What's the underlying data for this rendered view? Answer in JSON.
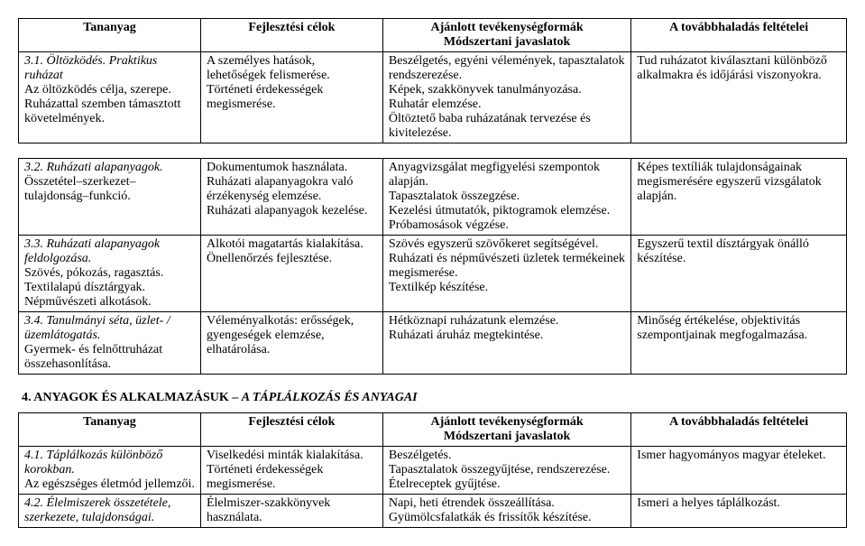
{
  "tables": {
    "first": {
      "headers": {
        "c1": "Tananyag",
        "c2": "Fejlesztési célok",
        "c3a": "Ajánlott tevékenységformák",
        "c3b": "Módszertani javaslatok",
        "c4": "A továbbhaladás feltételei"
      },
      "row1": {
        "c1_title": "3.1. Öltözködés. Praktikus ruházat",
        "c1_a": "Az öltözködés célja, szerepe.",
        "c1_b": "Ruházattal szemben támasztott követelmények.",
        "c2_a": "A személyes hatások, lehetőségek felismerése.",
        "c2_b": "Történeti érdekességek megismerése.",
        "c3_a": "Beszélgetés, egyéni vélemények, tapasztalatok rendszerezése.",
        "c3_b": "Képek, szakkönyvek tanulmányozása.",
        "c3_c": "Ruhatár elemzése.",
        "c3_d": "Öltöztető baba ruházatának tervezése és kivitelezése.",
        "c4_a": "Tud ruházatot kiválasztani különböző alkalmakra és időjárási viszonyokra."
      }
    },
    "second": {
      "row1": {
        "c1_title": "3.2. Ruházati alapanyagok.",
        "c1_a": "Összetétel–szerkezet–tulajdonság–funkció.",
        "c2_a": "Dokumentumok használata.",
        "c2_b": "Ruházati alapanyagokra való érzékenység elemzése.",
        "c2_c": "Ruházati alapanyagok kezelése.",
        "c3_a": "Anyagvizsgálat megfigyelési szempontok alapján.",
        "c3_b": "Tapasztalatok összegzése.",
        "c3_c": "Kezelési útmutatók, piktogramok elemzése.",
        "c3_d": "Próbamosások végzése.",
        "c4_a": "Képes textíliák tulajdonságainak megismerésére egyszerű vizsgálatok alapján."
      },
      "row2": {
        "c1_title": "3.3. Ruházati alapanyagok feldolgozása.",
        "c1_a": "Szövés, pókozás, ragasztás.",
        "c1_b": "Textilalapú dísztárgyak.",
        "c1_c": "Népművészeti alkotások.",
        "c2_a": "Alkotói magatartás kialakítása.",
        "c2_b": "Önellenőrzés fejlesztése.",
        "c3_a": "Szövés egyszerű szövőkeret segítségével.",
        "c3_b": "Ruházati és népművészeti üzletek termékeinek megismerése.",
        "c3_c": "Textilkép készítése.",
        "c4_a": "Egyszerű textil dísztárgyak önálló készítése."
      },
      "row3": {
        "c1_title": "3.4. Tanulmányi séta, üzlet- /üzemlátogatás.",
        "c1_a": "Gyermek- és felnőttruházat összehasonlítása.",
        "c2_a": "Véleményalkotás: erősségek, gyengeségek elemzése, elhatárolása.",
        "c3_a": "Hétköznapi ruházatunk elemzése.",
        "c3_b": "Ruházati áruház megtekintése.",
        "c4_a": "Minőség értékelése, objektivitás szempontjainak megfogalmazása."
      }
    },
    "section_heading": {
      "num": "4. ANYAGOK ÉS ALKALMAZÁSUK – ",
      "sub": "A TÁPLÁLKOZÁS ÉS ANYAGAI"
    },
    "third": {
      "headers": {
        "c1": "Tananyag",
        "c2": "Fejlesztési célok",
        "c3a": "Ajánlott tevékenységformák",
        "c3b": "Módszertani javaslatok",
        "c4": "A továbbhaladás feltételei"
      },
      "row1": {
        "c1_title": "4.1. Táplálkozás különböző korokban.",
        "c1_a": "Az egészséges életmód jellemzői.",
        "c2_a": "Viselkedési minták kialakítása.",
        "c2_b": "Történeti érdekességek megismerése.",
        "c3_a": "Beszélgetés.",
        "c3_b": "Tapasztalatok összegyűjtése, rendszerezése.",
        "c3_c": "Ételreceptek gyűjtése.",
        "c4_a": "Ismer hagyományos magyar ételeket."
      },
      "row2": {
        "c1_title": "4.2. Élelmiszerek összetétele, szerkezete, tulajdonságai.",
        "c2_a": "Élelmiszer-szakkönyvek használata.",
        "c3_a": "Napi, heti étrendek összeállítása.",
        "c3_b": "Gyümölcsfalatkák és frissítők készítése.",
        "c4_a": "Ismeri a helyes táplálkozást."
      }
    }
  }
}
